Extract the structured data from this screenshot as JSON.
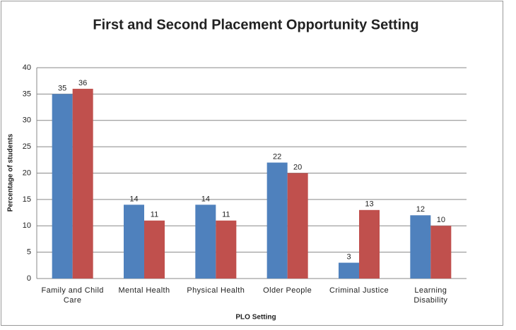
{
  "chart_data": {
    "type": "bar",
    "title": "First and Second Placement Opportunity Setting",
    "x_label": "PLO Setting",
    "y_label": "Percentage of students",
    "categories": [
      "Family and Child Care",
      "Mental Health",
      "Physical Health",
      "Older People",
      "Criminal Justice",
      "Learning Disability"
    ],
    "series": [
      {
        "color": "#4f81bd",
        "values": [
          35,
          14,
          14,
          22,
          3,
          12
        ]
      },
      {
        "color": "#c0504d",
        "values": [
          36,
          11,
          11,
          20,
          13,
          10
        ]
      }
    ],
    "ylim": [
      0,
      40
    ],
    "yticks": [
      0,
      5,
      10,
      15,
      20,
      25,
      30,
      35,
      40
    ],
    "grid": true
  }
}
